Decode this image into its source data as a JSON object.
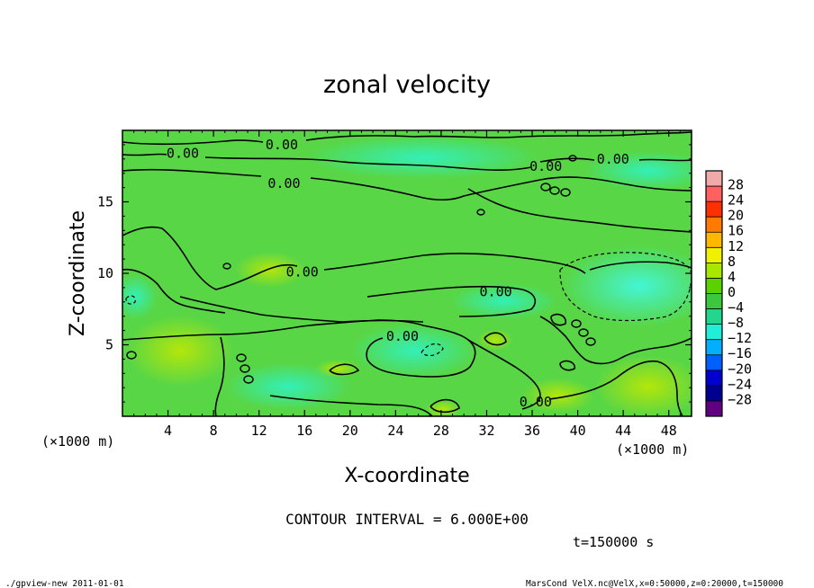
{
  "chart_data": {
    "type": "heatmap",
    "title": "zonal velocity",
    "xlabel": "X-coordinate",
    "ylabel": "Z-coordinate",
    "x_unit_label": "(×1000 m)",
    "z_unit_label": "(×1000 m)",
    "xlim": [
      0,
      50
    ],
    "ylim": [
      0,
      20
    ],
    "x_ticks": [
      4,
      8,
      12,
      16,
      20,
      24,
      28,
      32,
      36,
      40,
      44,
      48
    ],
    "y_ticks": [
      5,
      10,
      15
    ],
    "colorbar_levels": [
      28,
      24,
      20,
      16,
      12,
      8,
      4,
      0,
      -4,
      -8,
      -12,
      -16,
      -20,
      -24,
      -28
    ],
    "colorbar_colors": [
      "#f0aaaa",
      "#ff6060",
      "#ff3000",
      "#ff7a00",
      "#ffb800",
      "#f0f000",
      "#a8e800",
      "#5ad200",
      "#3ac83c",
      "#22d68e",
      "#22eed8",
      "#00b0ff",
      "#0060ff",
      "#0000d0",
      "#000090",
      "#600080"
    ],
    "contour_interval_text": "CONTOUR INTERVAL = 6.000E+00",
    "contour_labels": [
      {
        "text": "0.00",
        "x": 14,
        "z": 19.0
      },
      {
        "text": "0.00",
        "x": 5.3,
        "z": 18.4
      },
      {
        "text": "0.00",
        "x": 14.2,
        "z": 16.3
      },
      {
        "text": "0.00",
        "x": 15.8,
        "z": 10.1
      },
      {
        "text": "0.00",
        "x": 32.8,
        "z": 8.7
      },
      {
        "text": "0.00",
        "x": 24.6,
        "z": 5.6
      },
      {
        "text": "0.00",
        "x": 36.3,
        "z": 1.0
      },
      {
        "text": "0.00",
        "x": 37.2,
        "z": 17.5
      },
      {
        "text": "0.00",
        "x": 43.1,
        "z": 18.0
      }
    ],
    "time_label": "t=150000 s"
  },
  "footer": {
    "left": "./gpview-new  2011-01-01",
    "right": "MarsCond_VelX.nc@VelX,x=0:50000,z=0:20000,t=150000"
  }
}
